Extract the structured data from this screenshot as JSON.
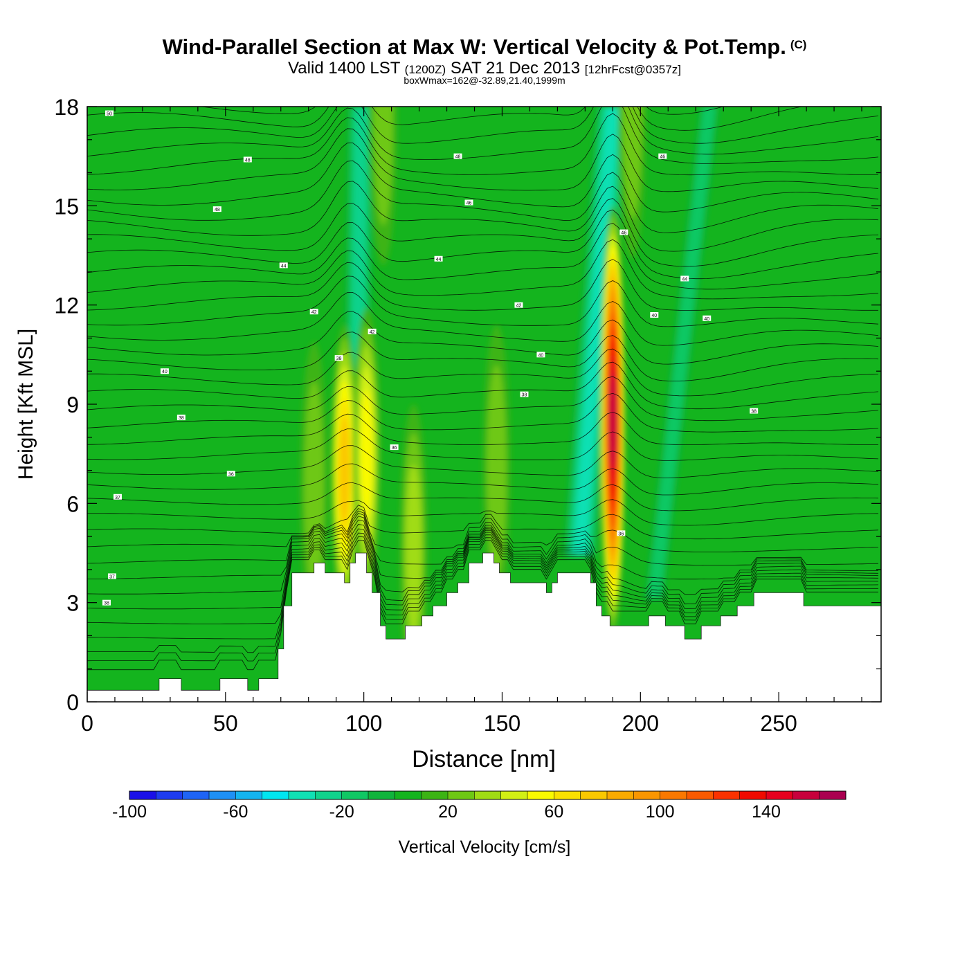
{
  "header": {
    "title": "Wind-Parallel Section at Max W: Vertical Velocity & Pot.Temp.",
    "copyright": "(C)",
    "valid_prefix": "Valid 1400 LST",
    "valid_utc": "(1200Z)",
    "valid_date": "SAT 21 Dec 2013",
    "forecast_info": "[12hrFcst@0357z]",
    "box_info": "boxWmax=162@-32.89,21.40,1999m"
  },
  "chart_data": {
    "type": "heatmap",
    "title": "Wind-Parallel Section at Max W: Vertical Velocity & Pot.Temp.",
    "xlabel": "Distance [nm]",
    "ylabel": "Height [Kft MSL]",
    "xlim": [
      0,
      287
    ],
    "ylim": [
      0,
      18
    ],
    "x_ticks": [
      0,
      50,
      100,
      150,
      200,
      250
    ],
    "y_ticks": [
      0,
      3,
      6,
      9,
      12,
      15,
      18
    ],
    "colorbar": {
      "label": "Vertical Velocity [cm/s]",
      "min": -100,
      "max": 170,
      "step": 10,
      "tick_values": [
        -100,
        -60,
        -20,
        20,
        60,
        100,
        140
      ],
      "tick_labels": [
        "-100",
        "-60",
        "-20",
        "20",
        "60",
        "100",
        "140"
      ],
      "colors": [
        "#1a10e8",
        "#1e3cf0",
        "#1e64f5",
        "#1e90f5",
        "#14b4f0",
        "#00e6f0",
        "#10e0b4",
        "#10d28c",
        "#10c864",
        "#10b43c",
        "#14b41e",
        "#3cb414",
        "#6ec814",
        "#a0dc14",
        "#d2f014",
        "#fafa00",
        "#fae100",
        "#fac800",
        "#faaa00",
        "#fa9600",
        "#fa7800",
        "#fa5a00",
        "#fa3200",
        "#f00a00",
        "#e6001e",
        "#c8003c",
        "#aa0050"
      ]
    },
    "terrain_kft": [
      [
        0,
        0.35
      ],
      [
        26,
        0.35
      ],
      [
        26,
        0.7
      ],
      [
        34,
        0.7
      ],
      [
        34,
        0.35
      ],
      [
        48,
        0.35
      ],
      [
        48,
        0.7
      ],
      [
        58,
        0.7
      ],
      [
        58,
        0.35
      ],
      [
        62,
        0.35
      ],
      [
        62,
        0.7
      ],
      [
        69,
        0.7
      ],
      [
        69,
        1.6
      ],
      [
        71,
        1.6
      ],
      [
        71,
        2.9
      ],
      [
        74,
        2.9
      ],
      [
        74,
        3.9
      ],
      [
        82,
        3.9
      ],
      [
        82,
        4.2
      ],
      [
        86,
        4.2
      ],
      [
        86,
        3.9
      ],
      [
        93,
        3.9
      ],
      [
        93,
        3.6
      ],
      [
        95,
        3.6
      ],
      [
        95,
        4.2
      ],
      [
        97,
        4.2
      ],
      [
        97,
        4.5
      ],
      [
        101,
        4.5
      ],
      [
        101,
        3.9
      ],
      [
        103,
        3.9
      ],
      [
        103,
        3.3
      ],
      [
        106,
        3.3
      ],
      [
        106,
        2.3
      ],
      [
        108,
        2.3
      ],
      [
        108,
        1.9
      ],
      [
        115,
        1.9
      ],
      [
        115,
        2.3
      ],
      [
        121,
        2.3
      ],
      [
        121,
        2.6
      ],
      [
        125,
        2.6
      ],
      [
        125,
        2.9
      ],
      [
        130,
        2.9
      ],
      [
        130,
        3.3
      ],
      [
        134,
        3.3
      ],
      [
        134,
        3.6
      ],
      [
        138,
        3.6
      ],
      [
        138,
        4.2
      ],
      [
        143,
        4.2
      ],
      [
        143,
        4.5
      ],
      [
        147,
        4.5
      ],
      [
        147,
        4.2
      ],
      [
        149,
        4.2
      ],
      [
        149,
        3.9
      ],
      [
        153,
        3.9
      ],
      [
        153,
        3.6
      ],
      [
        166,
        3.6
      ],
      [
        166,
        3.3
      ],
      [
        168,
        3.3
      ],
      [
        168,
        3.6
      ],
      [
        170,
        3.6
      ],
      [
        170,
        3.9
      ],
      [
        182,
        3.9
      ],
      [
        182,
        3.6
      ],
      [
        184,
        3.6
      ],
      [
        184,
        2.9
      ],
      [
        186,
        2.9
      ],
      [
        186,
        2.6
      ],
      [
        189,
        2.6
      ],
      [
        189,
        2.3
      ],
      [
        203,
        2.3
      ],
      [
        203,
        2.6
      ],
      [
        209,
        2.6
      ],
      [
        209,
        2.3
      ],
      [
        216,
        2.3
      ],
      [
        216,
        1.9
      ],
      [
        222,
        1.9
      ],
      [
        222,
        2.3
      ],
      [
        229,
        2.3
      ],
      [
        229,
        2.6
      ],
      [
        235,
        2.6
      ],
      [
        235,
        2.9
      ],
      [
        241,
        2.9
      ],
      [
        241,
        3.3
      ],
      [
        259,
        3.3
      ],
      [
        259,
        2.9
      ],
      [
        287,
        2.9
      ]
    ],
    "updraft_cores": [
      {
        "x": 93,
        "y": 7.0,
        "peak": 80
      },
      {
        "x": 101,
        "y": 7.5,
        "peak": 60
      },
      {
        "x": 118,
        "y": 4.6,
        "peak": 45
      },
      {
        "x": 190,
        "y": 8.5,
        "peak": 162
      },
      {
        "x": 82,
        "y": 6.5,
        "peak": 35
      },
      {
        "x": 148,
        "y": 7.0,
        "peak": 30
      },
      {
        "x": 107,
        "y": 17.6,
        "peak": 30
      },
      {
        "x": 197,
        "y": 17.8,
        "peak": 30
      }
    ],
    "downdraft_bands": [
      {
        "x_bottom": 97,
        "x_top": 99,
        "peak": -30
      },
      {
        "x_bottom": 178,
        "x_top": 190,
        "peak": -40
      },
      {
        "x_bottom": 205,
        "x_top": 225,
        "peak": -25
      }
    ],
    "theta_contour_labels": [
      {
        "x": 8,
        "y": 17.8,
        "label": "50"
      },
      {
        "x": 58,
        "y": 16.4,
        "label": "48"
      },
      {
        "x": 134,
        "y": 16.5,
        "label": "48"
      },
      {
        "x": 47,
        "y": 14.9,
        "label": "48"
      },
      {
        "x": 138,
        "y": 15.1,
        "label": "46"
      },
      {
        "x": 208,
        "y": 16.5,
        "label": "46"
      },
      {
        "x": 194,
        "y": 14.2,
        "label": "46"
      },
      {
        "x": 71,
        "y": 13.2,
        "label": "44"
      },
      {
        "x": 127,
        "y": 13.4,
        "label": "44"
      },
      {
        "x": 216,
        "y": 12.8,
        "label": "44"
      },
      {
        "x": 82,
        "y": 11.8,
        "label": "42"
      },
      {
        "x": 156,
        "y": 12.0,
        "label": "42"
      },
      {
        "x": 103,
        "y": 11.2,
        "label": "42"
      },
      {
        "x": 205,
        "y": 11.7,
        "label": "40"
      },
      {
        "x": 224,
        "y": 11.6,
        "label": "40"
      },
      {
        "x": 164,
        "y": 10.5,
        "label": "40"
      },
      {
        "x": 91,
        "y": 10.4,
        "label": "38"
      },
      {
        "x": 28,
        "y": 10.0,
        "label": "40"
      },
      {
        "x": 34,
        "y": 8.6,
        "label": "38"
      },
      {
        "x": 158,
        "y": 9.3,
        "label": "38"
      },
      {
        "x": 241,
        "y": 8.8,
        "label": "38"
      },
      {
        "x": 111,
        "y": 7.7,
        "label": "36"
      },
      {
        "x": 52,
        "y": 6.9,
        "label": "36"
      },
      {
        "x": 11,
        "y": 6.2,
        "label": "37"
      },
      {
        "x": 193,
        "y": 5.1,
        "label": "36"
      },
      {
        "x": 9,
        "y": 3.8,
        "label": "37"
      },
      {
        "x": 7,
        "y": 3.0,
        "label": "38"
      }
    ]
  }
}
